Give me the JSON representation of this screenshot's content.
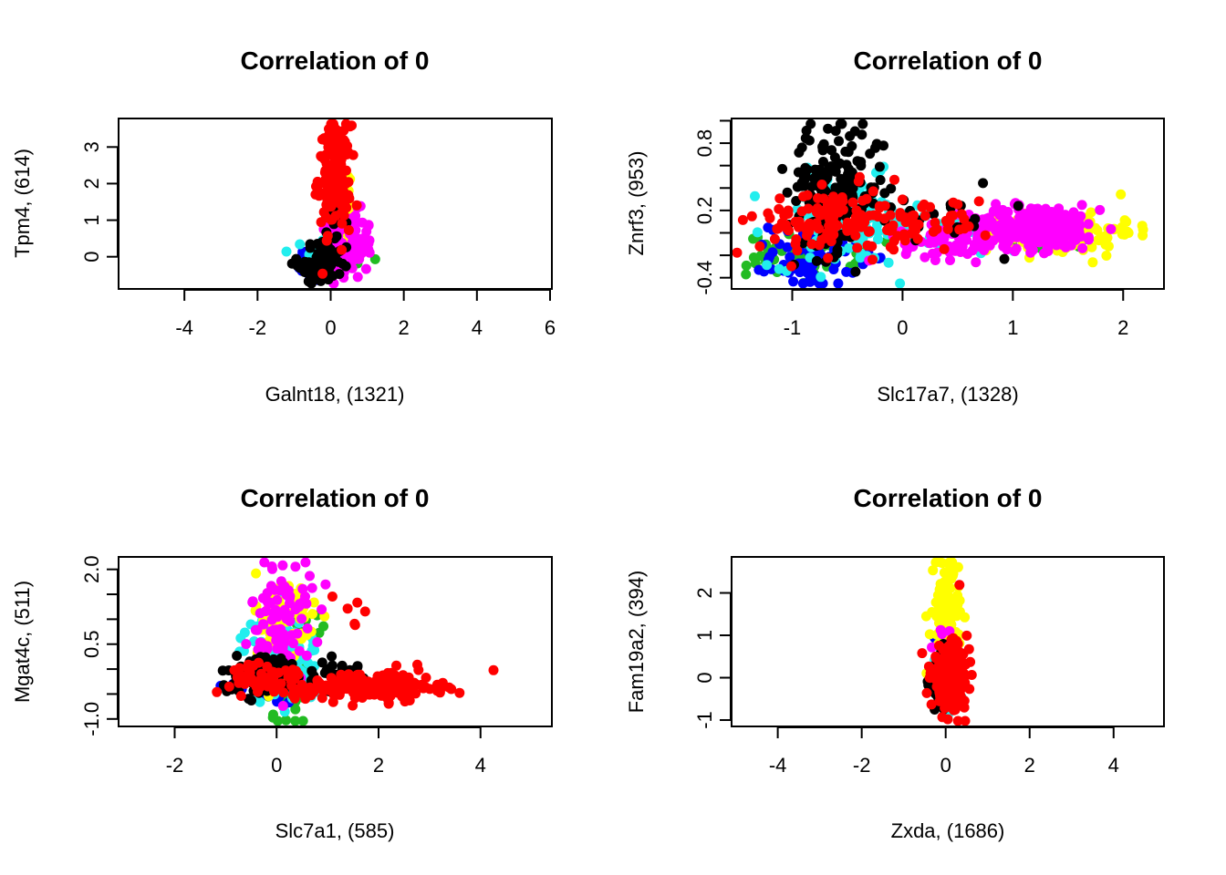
{
  "colors": {
    "green": "#22bb22",
    "blue": "#0000ff",
    "cyan": "#22eeee",
    "yellow": "#ffff00",
    "magenta": "#ff00ff",
    "black": "#000000",
    "red": "#ff0000"
  },
  "chart_data": [
    {
      "type": "scatter",
      "title": "Correlation of 0",
      "xlabel": "Galnt18, (1321)",
      "ylabel": "Tpm4, (614)",
      "xlim": [
        -5.8,
        6.05
      ],
      "ylim": [
        -0.88,
        3.78
      ],
      "xticks": [
        -4,
        -2,
        0,
        2,
        4,
        6
      ],
      "yticks": [
        0,
        1,
        2,
        3
      ],
      "xtick_labels": [
        "-4",
        "-2",
        "0",
        "2",
        "4",
        "6"
      ],
      "ytick_labels": [
        "0",
        "1",
        "2",
        "3"
      ],
      "grid": false,
      "series": [
        {
          "color": "green",
          "clusters": [
            {
              "cx": -0.1,
              "cy": 0.0,
              "sx": 0.3,
              "sy": 0.25,
              "n": 40
            },
            {
              "cx": 1.2,
              "cy": -0.1,
              "sx": 0.03,
              "sy": 0.03,
              "n": 1
            }
          ]
        },
        {
          "color": "blue",
          "clusters": [
            {
              "cx": -0.5,
              "cy": -0.2,
              "sx": 0.2,
              "sy": 0.25,
              "n": 45
            }
          ]
        },
        {
          "color": "cyan",
          "clusters": [
            {
              "cx": -0.2,
              "cy": 0.0,
              "sx": 0.25,
              "sy": 0.3,
              "n": 45
            }
          ]
        },
        {
          "color": "yellow",
          "clusters": [
            {
              "cx": 0.4,
              "cy": 1.4,
              "sx": 0.15,
              "sy": 0.6,
              "n": 30
            }
          ]
        },
        {
          "color": "magenta",
          "clusters": [
            {
              "cx": 0.55,
              "cy": 0.3,
              "sx": 0.3,
              "sy": 0.45,
              "n": 90
            }
          ]
        },
        {
          "color": "black",
          "clusters": [
            {
              "cx": -0.3,
              "cy": -0.2,
              "sx": 0.3,
              "sy": 0.3,
              "n": 80
            },
            {
              "cx": 0.2,
              "cy": 0.9,
              "sx": 0.15,
              "sy": 0.5,
              "n": 15
            }
          ]
        },
        {
          "color": "red",
          "clusters": [
            {
              "cx": 0.1,
              "cy": 2.2,
              "sx": 0.22,
              "sy": 0.7,
              "n": 160
            },
            {
              "cx": -0.2,
              "cy": -0.5,
              "sx": 0.05,
              "sy": 0.05,
              "n": 1
            }
          ]
        }
      ]
    },
    {
      "type": "scatter",
      "title": "Correlation of 0",
      "xlabel": "Slc17a7, (1328)",
      "ylabel": "Znrf3, (953)",
      "xlim": [
        -1.55,
        2.37
      ],
      "ylim": [
        -0.5,
        1.02
      ],
      "xticks": [
        -1,
        0,
        1,
        2
      ],
      "yticks": [
        -0.4,
        -0.2,
        0.0,
        0.2,
        0.4,
        0.6,
        0.8,
        1.0
      ],
      "xtick_labels": [
        "-1",
        "0",
        "1",
        "2"
      ],
      "ytick_labels": [
        "-0.4",
        "",
        "",
        "0.2",
        "",
        "",
        "0.8",
        ""
      ],
      "grid": false,
      "series": [
        {
          "color": "green",
          "clusters": [
            {
              "cx": -0.9,
              "cy": -0.2,
              "sx": 0.25,
              "sy": 0.09,
              "n": 60
            },
            {
              "cx": 1.2,
              "cy": 0.0,
              "sx": 0.3,
              "sy": 0.07,
              "n": 30
            }
          ]
        },
        {
          "color": "blue",
          "clusters": [
            {
              "cx": -0.8,
              "cy": -0.2,
              "sx": 0.2,
              "sy": 0.15,
              "n": 80
            }
          ]
        },
        {
          "color": "cyan",
          "clusters": [
            {
              "cx": -0.5,
              "cy": 0.1,
              "sx": 0.35,
              "sy": 0.2,
              "n": 120
            },
            {
              "cx": 0.5,
              "cy": 0.0,
              "sx": 0.4,
              "sy": 0.1,
              "n": 40
            }
          ]
        },
        {
          "color": "yellow",
          "clusters": [
            {
              "cx": 1.4,
              "cy": 0.0,
              "sx": 0.35,
              "sy": 0.1,
              "n": 120
            },
            {
              "cx": 2.0,
              "cy": 0.05,
              "sx": 0.06,
              "sy": 0.04,
              "n": 6
            }
          ]
        },
        {
          "color": "magenta",
          "clusters": [
            {
              "cx": 1.2,
              "cy": 0.05,
              "sx": 0.3,
              "sy": 0.1,
              "n": 260
            },
            {
              "cx": 0.5,
              "cy": -0.1,
              "sx": 0.25,
              "sy": 0.07,
              "n": 60
            }
          ]
        },
        {
          "color": "black",
          "clusters": [
            {
              "cx": -0.6,
              "cy": 0.4,
              "sx": 0.22,
              "sy": 0.28,
              "n": 170
            },
            {
              "cx": 0.3,
              "cy": 0.2,
              "sx": 0.3,
              "sy": 0.15,
              "n": 20
            }
          ]
        },
        {
          "color": "red",
          "clusters": [
            {
              "cx": -0.6,
              "cy": 0.1,
              "sx": 0.35,
              "sy": 0.15,
              "n": 130
            },
            {
              "cx": 0.2,
              "cy": 0.1,
              "sx": 0.3,
              "sy": 0.1,
              "n": 40
            }
          ]
        }
      ]
    },
    {
      "type": "scatter",
      "title": "Correlation of 0",
      "xlabel": "Slc7a1, (585)",
      "ylabel": "Mgat4c, (511)",
      "xlim": [
        -3.1,
        5.4
      ],
      "ylim": [
        -1.15,
        2.25
      ],
      "xticks": [
        -2,
        0,
        2,
        4
      ],
      "yticks": [
        -1.0,
        -0.5,
        0.0,
        0.5,
        1.0,
        1.5,
        2.0
      ],
      "xtick_labels": [
        "-2",
        "0",
        "2",
        "4"
      ],
      "ytick_labels": [
        "-1.0",
        "",
        "",
        "0.5",
        "",
        "",
        "2.0"
      ],
      "grid": false,
      "series": [
        {
          "color": "green",
          "clusters": [
            {
              "cx": 0.2,
              "cy": -0.4,
              "sx": 0.25,
              "sy": 0.35,
              "n": 40
            },
            {
              "cx": 0.6,
              "cy": 1.0,
              "sx": 0.15,
              "sy": 0.2,
              "n": 10
            }
          ]
        },
        {
          "color": "blue",
          "clusters": [
            {
              "cx": -0.2,
              "cy": -0.3,
              "sx": 0.3,
              "sy": 0.15,
              "n": 50
            }
          ]
        },
        {
          "color": "cyan",
          "clusters": [
            {
              "cx": 0.1,
              "cy": 0.2,
              "sx": 0.4,
              "sy": 0.45,
              "n": 90
            }
          ]
        },
        {
          "color": "yellow",
          "clusters": [
            {
              "cx": 0.2,
              "cy": 0.9,
              "sx": 0.3,
              "sy": 0.55,
              "n": 70
            }
          ]
        },
        {
          "color": "magenta",
          "clusters": [
            {
              "cx": 0.1,
              "cy": 1.0,
              "sx": 0.3,
              "sy": 0.6,
              "n": 90
            }
          ]
        },
        {
          "color": "black",
          "clusters": [
            {
              "cx": -0.2,
              "cy": -0.1,
              "sx": 0.45,
              "sy": 0.2,
              "n": 110
            },
            {
              "cx": 1.3,
              "cy": -0.1,
              "sx": 0.5,
              "sy": 0.15,
              "n": 20
            }
          ]
        },
        {
          "color": "red",
          "clusters": [
            {
              "cx": -0.1,
              "cy": -0.2,
              "sx": 0.4,
              "sy": 0.15,
              "n": 60
            },
            {
              "cx": 1.9,
              "cy": -0.35,
              "sx": 0.65,
              "sy": 0.15,
              "n": 180
            },
            {
              "cx": 1.4,
              "cy": 1.0,
              "sx": 0.2,
              "sy": 0.3,
              "n": 6
            }
          ]
        }
      ]
    },
    {
      "type": "scatter",
      "title": "Correlation of 0",
      "xlabel": "Zxda, (1686)",
      "ylabel": "Fam19a2, (394)",
      "xlim": [
        -5.1,
        5.2
      ],
      "ylim": [
        -1.15,
        2.85
      ],
      "xticks": [
        -4,
        -2,
        0,
        2,
        4
      ],
      "yticks": [
        -1,
        0,
        1,
        2
      ],
      "xtick_labels": [
        "-4",
        "-2",
        "0",
        "2",
        "4"
      ],
      "ytick_labels": [
        "-1",
        "0",
        "1",
        "2"
      ],
      "grid": false,
      "series": [
        {
          "color": "green",
          "clusters": [
            {
              "cx": 0.0,
              "cy": 0.5,
              "sx": 0.12,
              "sy": 0.4,
              "n": 20
            }
          ]
        },
        {
          "color": "blue",
          "clusters": [
            {
              "cx": 0.0,
              "cy": 0.3,
              "sx": 0.12,
              "sy": 0.4,
              "n": 25
            }
          ]
        },
        {
          "color": "cyan",
          "clusters": [
            {
              "cx": 0.0,
              "cy": 0.0,
              "sx": 0.15,
              "sy": 0.35,
              "n": 40
            }
          ]
        },
        {
          "color": "yellow",
          "clusters": [
            {
              "cx": 0.0,
              "cy": 1.3,
              "sx": 0.15,
              "sy": 0.7,
              "n": 160
            }
          ]
        },
        {
          "color": "magenta",
          "clusters": [
            {
              "cx": 0.0,
              "cy": 0.4,
              "sx": 0.12,
              "sy": 0.4,
              "n": 20
            }
          ]
        },
        {
          "color": "black",
          "clusters": [
            {
              "cx": -0.1,
              "cy": -0.1,
              "sx": 0.15,
              "sy": 0.35,
              "n": 110
            }
          ]
        },
        {
          "color": "red",
          "clusters": [
            {
              "cx": 0.1,
              "cy": 0.0,
              "sx": 0.22,
              "sy": 0.35,
              "n": 220
            },
            {
              "cx": 0.3,
              "cy": 2.2,
              "sx": 0.03,
              "sy": 0.03,
              "n": 1
            }
          ]
        }
      ]
    }
  ]
}
